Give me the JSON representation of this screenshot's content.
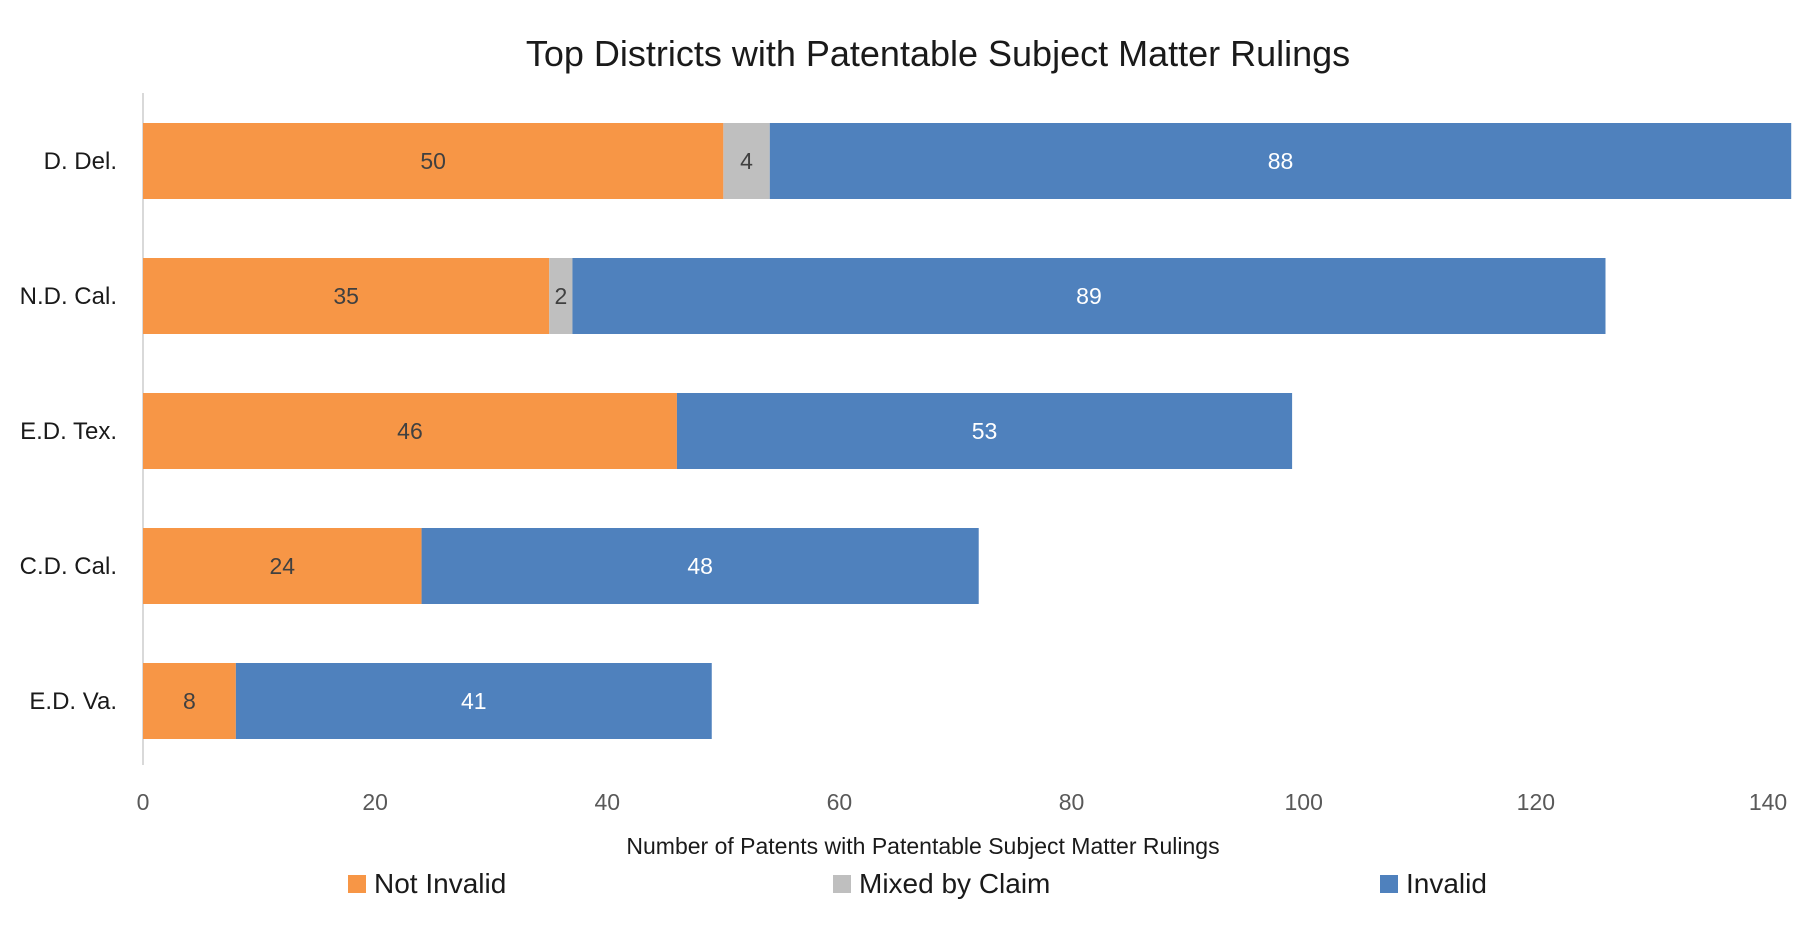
{
  "chart_data": {
    "type": "bar",
    "orientation": "horizontal",
    "stacked": true,
    "title": "Top Districts with Patentable Subject Matter Rulings",
    "xlabel": "Number of Patents with Patentable Subject Matter Rulings",
    "ylabel": "",
    "categories": [
      "D. Del.",
      "N.D. Cal.",
      "E.D. Tex.",
      "C.D. Cal.",
      "E.D. Va."
    ],
    "series": [
      {
        "name": "Not Invalid",
        "values": [
          50,
          35,
          46,
          24,
          8
        ],
        "color": "#F79646",
        "label_color": "#404040"
      },
      {
        "name": "Mixed by Claim",
        "values": [
          4,
          2,
          null,
          null,
          null
        ],
        "color": "#BFBFBF",
        "label_color": "#404040"
      },
      {
        "name": "Invalid",
        "values": [
          88,
          89,
          53,
          48,
          41
        ],
        "color": "#4F81BD",
        "label_color": "#FFFFFF"
      }
    ],
    "xlim": [
      0,
      140
    ],
    "xticks": [
      "0",
      "20",
      "40",
      "60",
      "80",
      "100",
      "120",
      "140"
    ],
    "grid": false,
    "legend_position": "bottom"
  }
}
